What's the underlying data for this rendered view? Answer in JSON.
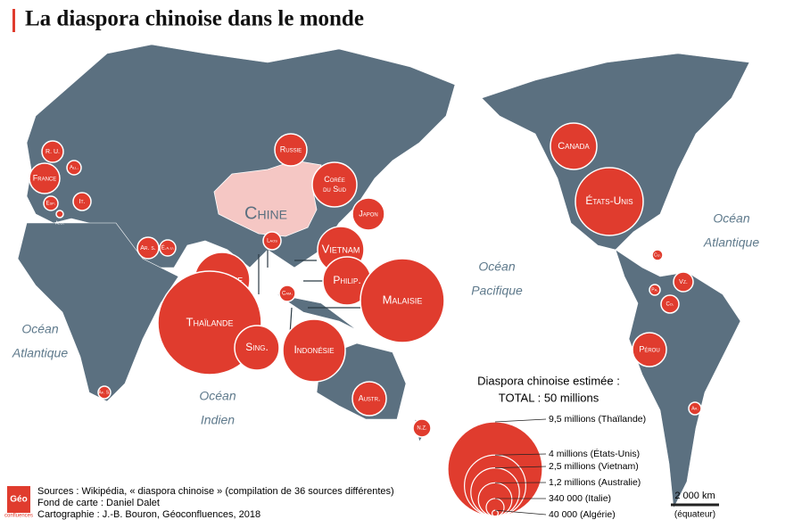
{
  "title": "La diaspora chinoise dans le monde",
  "countries": [
    "R. U.",
    "All.",
    "France",
    "Esp.",
    "Alg.",
    "It.",
    "Russie",
    "Corée du Sud",
    "Japon",
    "Laos",
    "Vietnam",
    "Birmanie",
    "Philip.",
    "Malaisie",
    "Thaïlande",
    "Cam.",
    "Sing.",
    "Indonésie",
    "Austr.",
    "N.Z.",
    "Ar. s.",
    "É.a.u.",
    "Af. S.",
    "Canada",
    "États-Unis",
    "Cu.",
    "Pa.",
    "Vz.",
    "Co.",
    "Pérou",
    "Ar."
  ],
  "china": "Chine",
  "oceans": [
    [
      "Océan",
      "Atlantique"
    ],
    [
      "Océan",
      "Indien"
    ],
    [
      "Océan",
      "Pacifique"
    ],
    [
      "Océan",
      "Atlantique"
    ]
  ],
  "legend": {
    "title": "Diaspora chinoise estimée :",
    "total": "TOTAL : 50 millions",
    "items": [
      {
        "value": 9500000,
        "label": "9,5 millions (Thaïlande)"
      },
      {
        "value": 4000000,
        "label": "4 millions (États-Unis)"
      },
      {
        "value": 2500000,
        "label": "2,5 millions (Vietnam)"
      },
      {
        "value": 1200000,
        "label": "1,2 millions (Australie)"
      },
      {
        "value": 340000,
        "label": "340 000 (Italie)"
      },
      {
        "value": 40000,
        "label": "40 000 (Algérie)"
      }
    ]
  },
  "scale": {
    "distance": "2 000 km",
    "note": "(équateur)"
  },
  "logo": [
    "Géo",
    "confluences"
  ],
  "sources": [
    "Sources : Wikipédia, « diaspora chinoise » (compilation de 36 sources différentes)",
    "Fond de carte : Daniel Dalet",
    "Cartographie : J.-B. Bouron, Géoconfluences, 2018"
  ]
}
